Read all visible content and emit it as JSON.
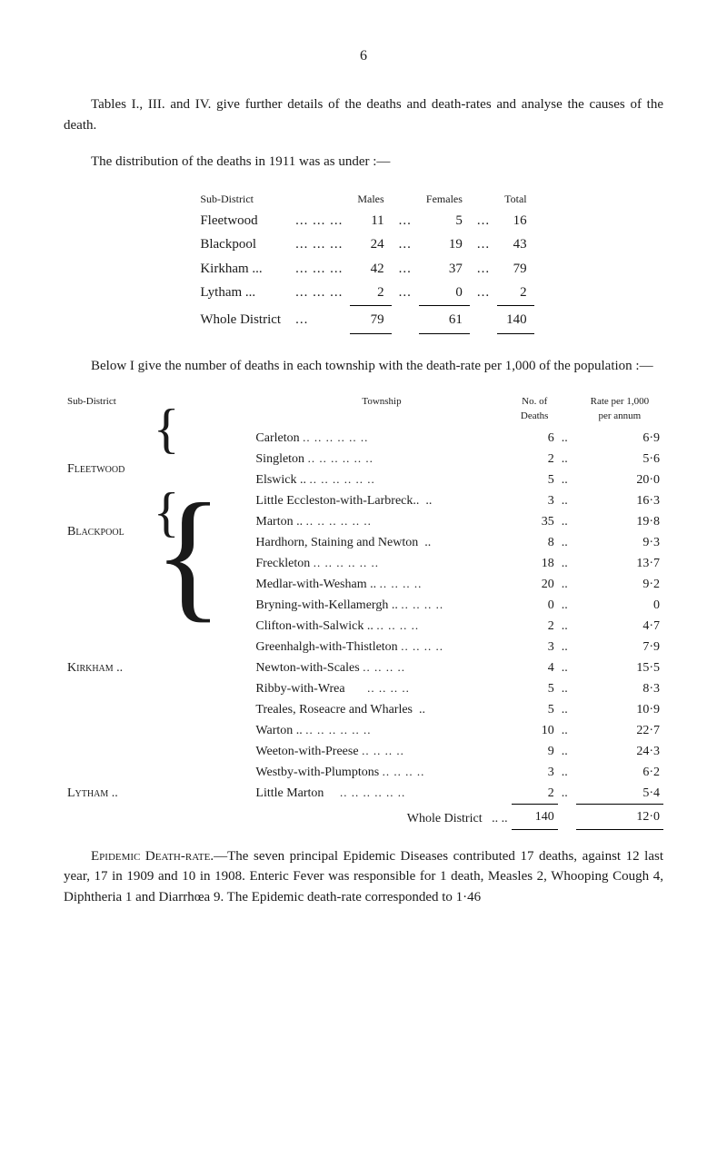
{
  "page_number": "6",
  "intro": "Tables I., III. and IV. give further details of the deaths and death-rates and analyse the causes of the death.",
  "dist_intro": "The distribution of the deaths in 1911 was as under :—",
  "dist_table": {
    "headers": {
      "sub": "Sub-District",
      "m": "Males",
      "f": "Females",
      "t": "Total"
    },
    "rows": [
      {
        "name": "Fleetwood",
        "ell": "...  ...  ...",
        "m": "11",
        "mf": "...",
        "f": "5",
        "ft": "...",
        "t": "16"
      },
      {
        "name": "Blackpool",
        "ell": "...  ...  ...",
        "m": "24",
        "mf": "...",
        "f": "19",
        "ft": "...",
        "t": "43"
      },
      {
        "name": "Kirkham ...",
        "ell": "...  ...  ...",
        "m": "42",
        "mf": "...",
        "f": "37",
        "ft": "...",
        "t": "79"
      },
      {
        "name": "Lytham  ...",
        "ell": "...  ...  ...",
        "m": "2",
        "mf": "...",
        "f": "0",
        "ft": "...",
        "t": "2"
      }
    ],
    "total": {
      "name": "Whole District",
      "ell": "...",
      "m": "79",
      "f": "61",
      "t": "140"
    }
  },
  "below_intro": "Below I give the number of deaths in each township with the death-rate per 1,000 of the population :—",
  "township_table": {
    "headers": {
      "sub": "Sub-District",
      "town": "Township",
      "deaths": "No. of\nDeaths",
      "rate": "Rate per 1,000\nper annum"
    },
    "groups": [
      {
        "sub": "Fleetwood",
        "rows": [
          {
            "name": "Carleton",
            "d": "6",
            "r": "6·9"
          },
          {
            "name": "Singleton",
            "d": "2",
            "r": "5·6"
          },
          {
            "name": "Elswick ..",
            "d": "5",
            "r": "20·0"
          },
          {
            "name": "Little Eccleston-with-Larbreck..",
            "d": "3",
            "r": "16·3"
          }
        ]
      },
      {
        "sub": "Blackpool",
        "rows": [
          {
            "name": "Marton ..",
            "d": "35",
            "r": "19·8"
          },
          {
            "name": "Hardhorn, Staining and Newton",
            "d": "8",
            "r": "9·3"
          }
        ]
      },
      {
        "sub": "Kirkham ..",
        "rows": [
          {
            "name": "Freckleton",
            "d": "18",
            "r": "13·7"
          },
          {
            "name": "Medlar-with-Wesham ..",
            "d": "20",
            "r": "9·2"
          },
          {
            "name": "Bryning-with-Kellamergh ..",
            "d": "0",
            "r": "0"
          },
          {
            "name": "Clifton-with-Salwick ..",
            "d": "2",
            "r": "4·7"
          },
          {
            "name": "Greenhalgh-with-Thistleton",
            "d": "3",
            "r": "7·9"
          },
          {
            "name": "Newton-with-Scales",
            "d": "4",
            "r": "15·5"
          },
          {
            "name": "Ribby-with-Wrea",
            "d": "5",
            "r": "8·3"
          },
          {
            "name": "Treales, Roseacre and Wharles",
            "d": "5",
            "r": "10·9"
          },
          {
            "name": "Warton ..",
            "d": "10",
            "r": "22·7"
          },
          {
            "name": "Weeton-with-Preese",
            "d": "9",
            "r": "24·3"
          },
          {
            "name": "Westby-with-Plumptons",
            "d": "3",
            "r": "6·2"
          }
        ]
      },
      {
        "sub": "Lytham  ..",
        "rows": [
          {
            "name": "Little Marton",
            "d": "2",
            "r": "5·4"
          }
        ]
      }
    ],
    "total": {
      "label": "Whole District",
      "ell": "..  ..",
      "d": "140",
      "r": "12·0"
    }
  },
  "epidemic": {
    "heading": "Epidemic Death-rate.",
    "body": "—The seven principal Epidemic Diseases contributed 17 deaths, against 12 last year, 17 in 1909 and 10 in 1908. Enteric Fever was responsible for 1 death, Measles 2, Whooping Cough 4, Diphtheria 1 and Diarrhœa 9. The Epidemic death-rate corresponded to 1·46"
  }
}
